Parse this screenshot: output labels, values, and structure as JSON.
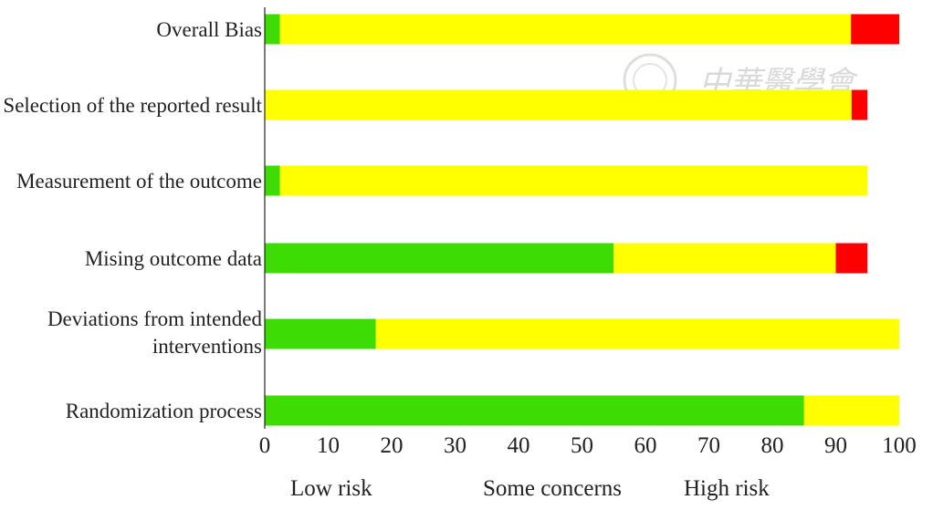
{
  "chart_data": {
    "type": "bar",
    "orientation": "horizontal",
    "stacked": true,
    "title": "",
    "xlabel": "",
    "ylabel": "",
    "xlim": [
      0,
      100
    ],
    "x_ticks": [
      0,
      10,
      20,
      30,
      40,
      50,
      60,
      70,
      80,
      90,
      100
    ],
    "grid": false,
    "legend_position": "bottom",
    "categories": [
      "Overall Bias",
      "Selection of the reported result",
      "Measurement of the outcome",
      "Mising outcome data",
      "Deviations from intended interventions",
      "Randomization process"
    ],
    "series": [
      {
        "name": "Low risk",
        "color": "#3ddc04",
        "values": [
          2.4,
          0,
          2.4,
          55,
          17.5,
          85
        ]
      },
      {
        "name": "Some concerns",
        "color": "#ffff00",
        "values": [
          90,
          92.5,
          92.6,
          35,
          82.5,
          15
        ]
      },
      {
        "name": "High risk",
        "color": "#ff0000",
        "values": [
          7.6,
          2.5,
          0,
          5,
          0,
          0
        ]
      }
    ]
  },
  "watermark": {
    "text": "中華醫學會"
  }
}
